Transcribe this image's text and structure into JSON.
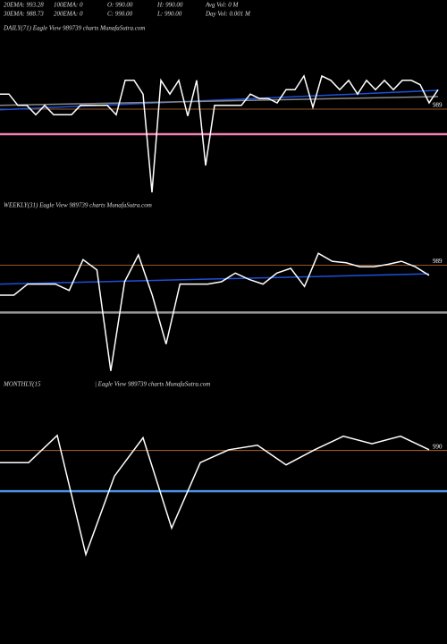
{
  "header": {
    "row1": [
      "20EMA: 993.28",
      "100EMA: 0",
      "O: 990.00",
      "H: 990.00",
      "Avg Vol: 0  M"
    ],
    "row2": [
      "30EMA: 988.73",
      "200EMA: 0",
      "C: 990.00",
      "L: 990.00",
      "Day Vol: 0.001  M"
    ]
  },
  "chart_data": [
    {
      "type": "line",
      "title": "DAILY(71) Eagle  View  989739 charts MunafaSutra.com",
      "categories": [
        null,
        null,
        null,
        null,
        null,
        null,
        null,
        null,
        null,
        null,
        null,
        null,
        null,
        null,
        null,
        null,
        null,
        null,
        null,
        null,
        null,
        null,
        null,
        null,
        null,
        null,
        null,
        null,
        null,
        null,
        null,
        null,
        null,
        null,
        null,
        null,
        null,
        null,
        null,
        null,
        null,
        null,
        null,
        null,
        null,
        null,
        null,
        null,
        null,
        null
      ],
      "series": [
        {
          "color": "#ffffff",
          "values": [
            991.4,
            991.4,
            989.6,
            989.6,
            988.1,
            989.6,
            988.1,
            988.1,
            988.1,
            989.6,
            989.6,
            989.6,
            989.6,
            988.1,
            993.6,
            993.6,
            991.4,
            975.7,
            993.6,
            991.4,
            993.6,
            987.9,
            993.6,
            980,
            989.6,
            989.6,
            989.6,
            989.6,
            991.4,
            990.7,
            990.7,
            990,
            992.1,
            992.1,
            994.3,
            989.3,
            994.3,
            993.6,
            992.1,
            993.6,
            991.4,
            993.6,
            992.1,
            993.6,
            992.1,
            993.6,
            993.6,
            992.9,
            990,
            992.1
          ]
        }
      ],
      "trend_lines": [
        {
          "color": "#1f4fd8",
          "values": [
            988.9,
            992
          ]
        },
        {
          "color": "#888888",
          "values": [
            989.6,
            991
          ]
        }
      ],
      "levels": [
        {
          "value": 989,
          "color": "#c87533",
          "label": "989"
        },
        {
          "value": 985,
          "color": "#f080b0"
        }
      ],
      "ylim": [
        975,
        995
      ]
    },
    {
      "type": "line",
      "title": "WEEKLY(31) Eagle  View  989739 charts MunafaSutra.com",
      "categories": [
        null,
        null,
        null,
        null,
        null,
        null,
        null,
        null,
        null,
        null,
        null,
        null,
        null,
        null,
        null,
        null,
        null,
        null,
        null,
        null,
        null,
        null,
        null,
        null,
        null,
        null,
        null,
        null,
        null,
        null,
        null,
        null
      ],
      "series": [
        {
          "color": "#ffffff",
          "values": [
            985.2,
            985.2,
            986.6,
            986.6,
            986.6,
            985.8,
            989.7,
            988.4,
            975.6,
            986.9,
            990.3,
            985.2,
            979,
            986.6,
            986.6,
            986.6,
            986.9,
            988,
            987.2,
            986.6,
            988,
            988.6,
            986.3,
            990.5,
            989.5,
            989.3,
            988.8,
            988.8,
            989.1,
            989.5,
            988.8,
            987.7
          ]
        }
      ],
      "trend_lines": [
        {
          "color": "#1f4fd8",
          "values": [
            986.6,
            987.9
          ]
        }
      ],
      "levels": [
        {
          "value": 989,
          "color": "#c87533",
          "label": "989"
        },
        {
          "value": 983,
          "color": "#999999"
        }
      ],
      "ylim": [
        975,
        992
      ]
    },
    {
      "type": "line",
      "title": "MONTHLY(15",
      "title2": "| Eagle  View  989739 charts MunafaSutra.com",
      "categories": [
        null,
        null,
        null,
        null,
        null,
        null,
        null,
        null,
        null,
        null,
        null,
        null,
        null,
        null,
        null,
        null
      ],
      "series": [
        {
          "color": "#ffffff",
          "values": [
            988.4,
            988.4,
            992,
            976.2,
            986.6,
            991.7,
            979.7,
            988.4,
            990.1,
            990.7,
            988.1,
            990.1,
            991.9,
            990.9,
            991.9,
            990.1
          ]
        }
      ],
      "trend_lines": [],
      "levels": [
        {
          "value": 990,
          "color": "#c87533",
          "label": "990"
        },
        {
          "value": 984.6,
          "color": "#4a90e2"
        }
      ],
      "ylim": [
        975,
        994
      ]
    }
  ]
}
